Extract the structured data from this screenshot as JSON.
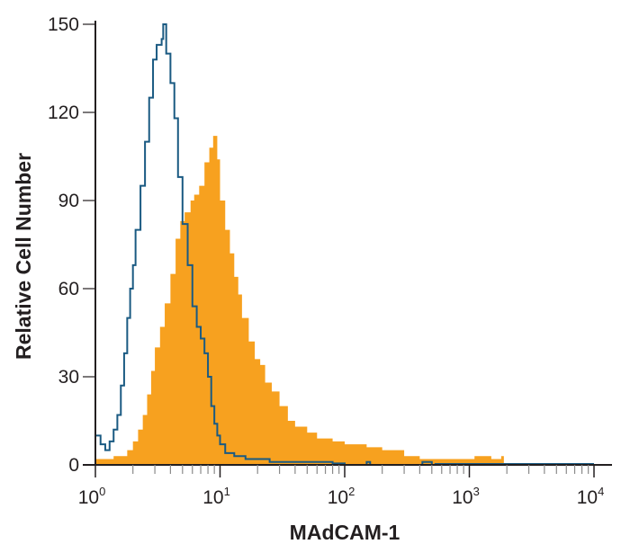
{
  "chart_data": {
    "type": "area",
    "title": "",
    "xlabel": "MAdCAM-1",
    "ylabel": "Relative Cell Number",
    "xscale": "log",
    "xlim": [
      1,
      10000
    ],
    "ylim": [
      0,
      150
    ],
    "yticks": [
      0,
      30,
      60,
      90,
      120,
      150
    ],
    "xticks": [
      {
        "value": 1,
        "base": "10",
        "exp": "0"
      },
      {
        "value": 10,
        "base": "10",
        "exp": "1"
      },
      {
        "value": 100,
        "base": "10",
        "exp": "2"
      },
      {
        "value": 1000,
        "base": "10",
        "exp": "3"
      },
      {
        "value": 10000,
        "base": "10",
        "exp": "4"
      }
    ],
    "grid": false,
    "legend": "none",
    "series": [
      {
        "style": "filled histogram",
        "color": "#F7A11F",
        "x": [
          1.0,
          1.2,
          1.4,
          1.6,
          1.8,
          2.0,
          2.2,
          2.4,
          2.6,
          2.8,
          3.0,
          3.3,
          3.6,
          4.0,
          4.4,
          4.8,
          5.2,
          5.8,
          6.2,
          6.8,
          7.5,
          8.2,
          8.8,
          9.5,
          10,
          11,
          12,
          13,
          14,
          15,
          17,
          19,
          21,
          23,
          26,
          30,
          35,
          40,
          50,
          60,
          80,
          100,
          150,
          200,
          300,
          400,
          500,
          700,
          1000,
          1100,
          1500,
          1800
        ],
        "y": [
          2,
          2,
          3,
          3,
          5,
          8,
          12,
          17,
          24,
          32,
          40,
          47,
          55,
          65,
          77,
          83,
          86,
          90,
          92,
          95,
          103,
          108,
          112,
          104,
          90,
          80,
          72,
          64,
          58,
          50,
          42,
          36,
          34,
          28,
          25,
          20,
          15,
          13,
          11,
          9,
          8,
          7,
          6,
          5,
          3,
          2,
          2,
          2,
          2,
          3,
          2,
          3
        ]
      },
      {
        "style": "outline histogram",
        "color": "#1A5A82",
        "x": [
          1.0,
          1.1,
          1.2,
          1.3,
          1.4,
          1.5,
          1.6,
          1.7,
          1.8,
          1.9,
          2.0,
          2.1,
          2.3,
          2.5,
          2.7,
          2.9,
          3.1,
          3.4,
          3.5,
          3.7,
          4.0,
          4.3,
          4.6,
          5.0,
          5.5,
          6.0,
          6.5,
          7.0,
          7.5,
          8.0,
          8.5,
          9.0,
          9.5,
          10,
          11,
          13,
          16,
          20,
          25,
          30,
          40,
          50,
          70,
          80,
          100,
          150,
          160,
          400,
          420,
          500
        ],
        "y": [
          10,
          7,
          5,
          8,
          12,
          17,
          27,
          38,
          50,
          60,
          68,
          80,
          95,
          110,
          125,
          138,
          143,
          145,
          150,
          140,
          130,
          118,
          98,
          82,
          68,
          54,
          47,
          43,
          38,
          30,
          20,
          14,
          10,
          7,
          4,
          3,
          2,
          2,
          1,
          1,
          1,
          1,
          1,
          0.5,
          0,
          1,
          0,
          0,
          1,
          0
        ]
      }
    ]
  }
}
